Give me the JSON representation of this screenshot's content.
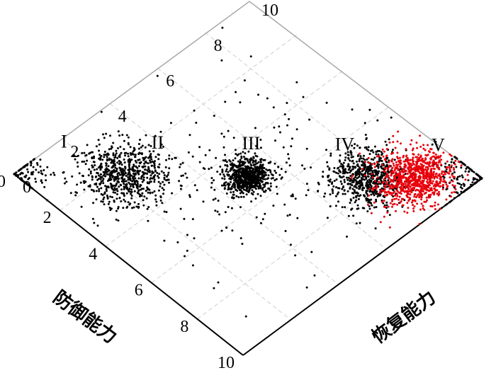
{
  "chart_data": {
    "type": "scatter",
    "xlabel": "防御能力",
    "ylabel": "恢复能力",
    "xlim": [
      0,
      10
    ],
    "ylim": [
      0,
      10
    ],
    "x_ticks": [
      "0",
      "2",
      "4",
      "6",
      "8",
      "10"
    ],
    "y_ticks": [
      "0",
      "2",
      "4",
      "6",
      "8",
      "10"
    ],
    "grid": true,
    "region_labels": [
      {
        "text": "I",
        "x": 0.3,
        "y": 1.8
      },
      {
        "text": "II",
        "x": 2.3,
        "y": 3.8
      },
      {
        "text": "III",
        "x": 4.3,
        "y": 5.8
      },
      {
        "text": "IV",
        "x": 6.3,
        "y": 7.8
      },
      {
        "text": "V",
        "x": 8.3,
        "y": 9.8
      }
    ],
    "series": [
      {
        "color": "#000000",
        "clusters": [
          {
            "cx": 0.2,
            "cy": 0.2,
            "sx": 0.45,
            "sy": 0.45,
            "n": 110,
            "clip": true
          },
          {
            "cx": 2.35,
            "cy": 2.35,
            "sx": 0.65,
            "sy": 0.65,
            "n": 700
          },
          {
            "cx": 5.0,
            "cy": 5.0,
            "sx": 0.35,
            "sy": 0.35,
            "n": 700
          },
          {
            "cx": 7.55,
            "cy": 7.55,
            "sx": 0.55,
            "sy": 0.55,
            "n": 650
          },
          {
            "cx": 9.75,
            "cy": 9.75,
            "sx": 0.55,
            "sy": 0.55,
            "n": 160,
            "clip": true
          },
          {
            "cx": 5.0,
            "cy": 5.0,
            "sx": 2.2,
            "sy": 2.2,
            "n": 220
          }
        ]
      },
      {
        "color": "#e8000b",
        "clusters": [
          {
            "cx": 8.55,
            "cy": 8.55,
            "sx": 0.55,
            "sy": 0.55,
            "n": 900
          }
        ]
      }
    ]
  }
}
